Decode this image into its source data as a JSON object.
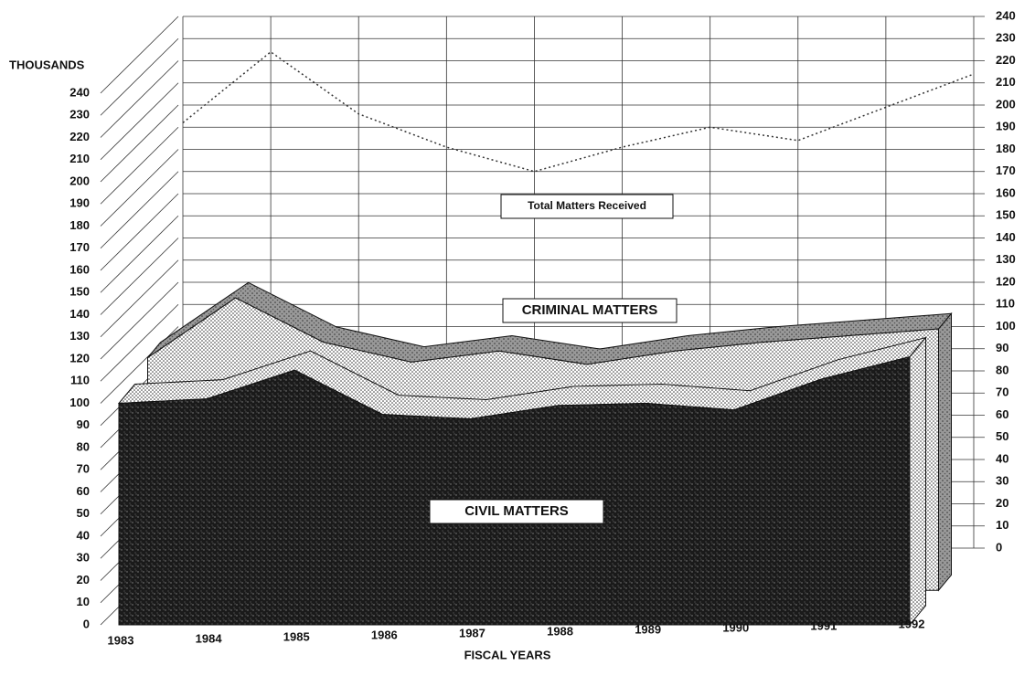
{
  "chart_data": {
    "type": "area3d",
    "y_label": "THOUSANDS",
    "x_label": "FISCAL YEARS",
    "categories": [
      "1983",
      "1984",
      "1985",
      "1986",
      "1987",
      "1988",
      "1989",
      "1990",
      "1991",
      "1992"
    ],
    "series": [
      {
        "name": "CIVIL MATTERS",
        "color": "#222222",
        "values": [
          100,
          102,
          115,
          95,
          93,
          99,
          100,
          97,
          111,
          121
        ]
      },
      {
        "name": "CRIMINAL MATTERS",
        "color": "#777777",
        "values": [
          105,
          132,
          112,
          103,
          108,
          102,
          108,
          112,
          115,
          118
        ]
      },
      {
        "name": "Total Matters Received",
        "color": "#333333",
        "axis": "y2",
        "values": [
          192,
          224,
          196,
          181,
          170,
          181,
          190,
          184,
          199,
          214
        ]
      }
    ],
    "ylim": [
      0,
      240
    ],
    "yticks": [
      0,
      10,
      20,
      30,
      40,
      50,
      60,
      70,
      80,
      90,
      100,
      110,
      120,
      130,
      140,
      150,
      160,
      170,
      180,
      190,
      200,
      210,
      220,
      230,
      240
    ],
    "y2lim": [
      0,
      240
    ],
    "y2ticks": [
      0,
      10,
      20,
      30,
      40,
      50,
      60,
      70,
      80,
      90,
      100,
      110,
      120,
      130,
      140,
      150,
      160,
      170,
      180,
      190,
      200,
      210,
      220,
      230,
      240
    ],
    "grid": true
  }
}
